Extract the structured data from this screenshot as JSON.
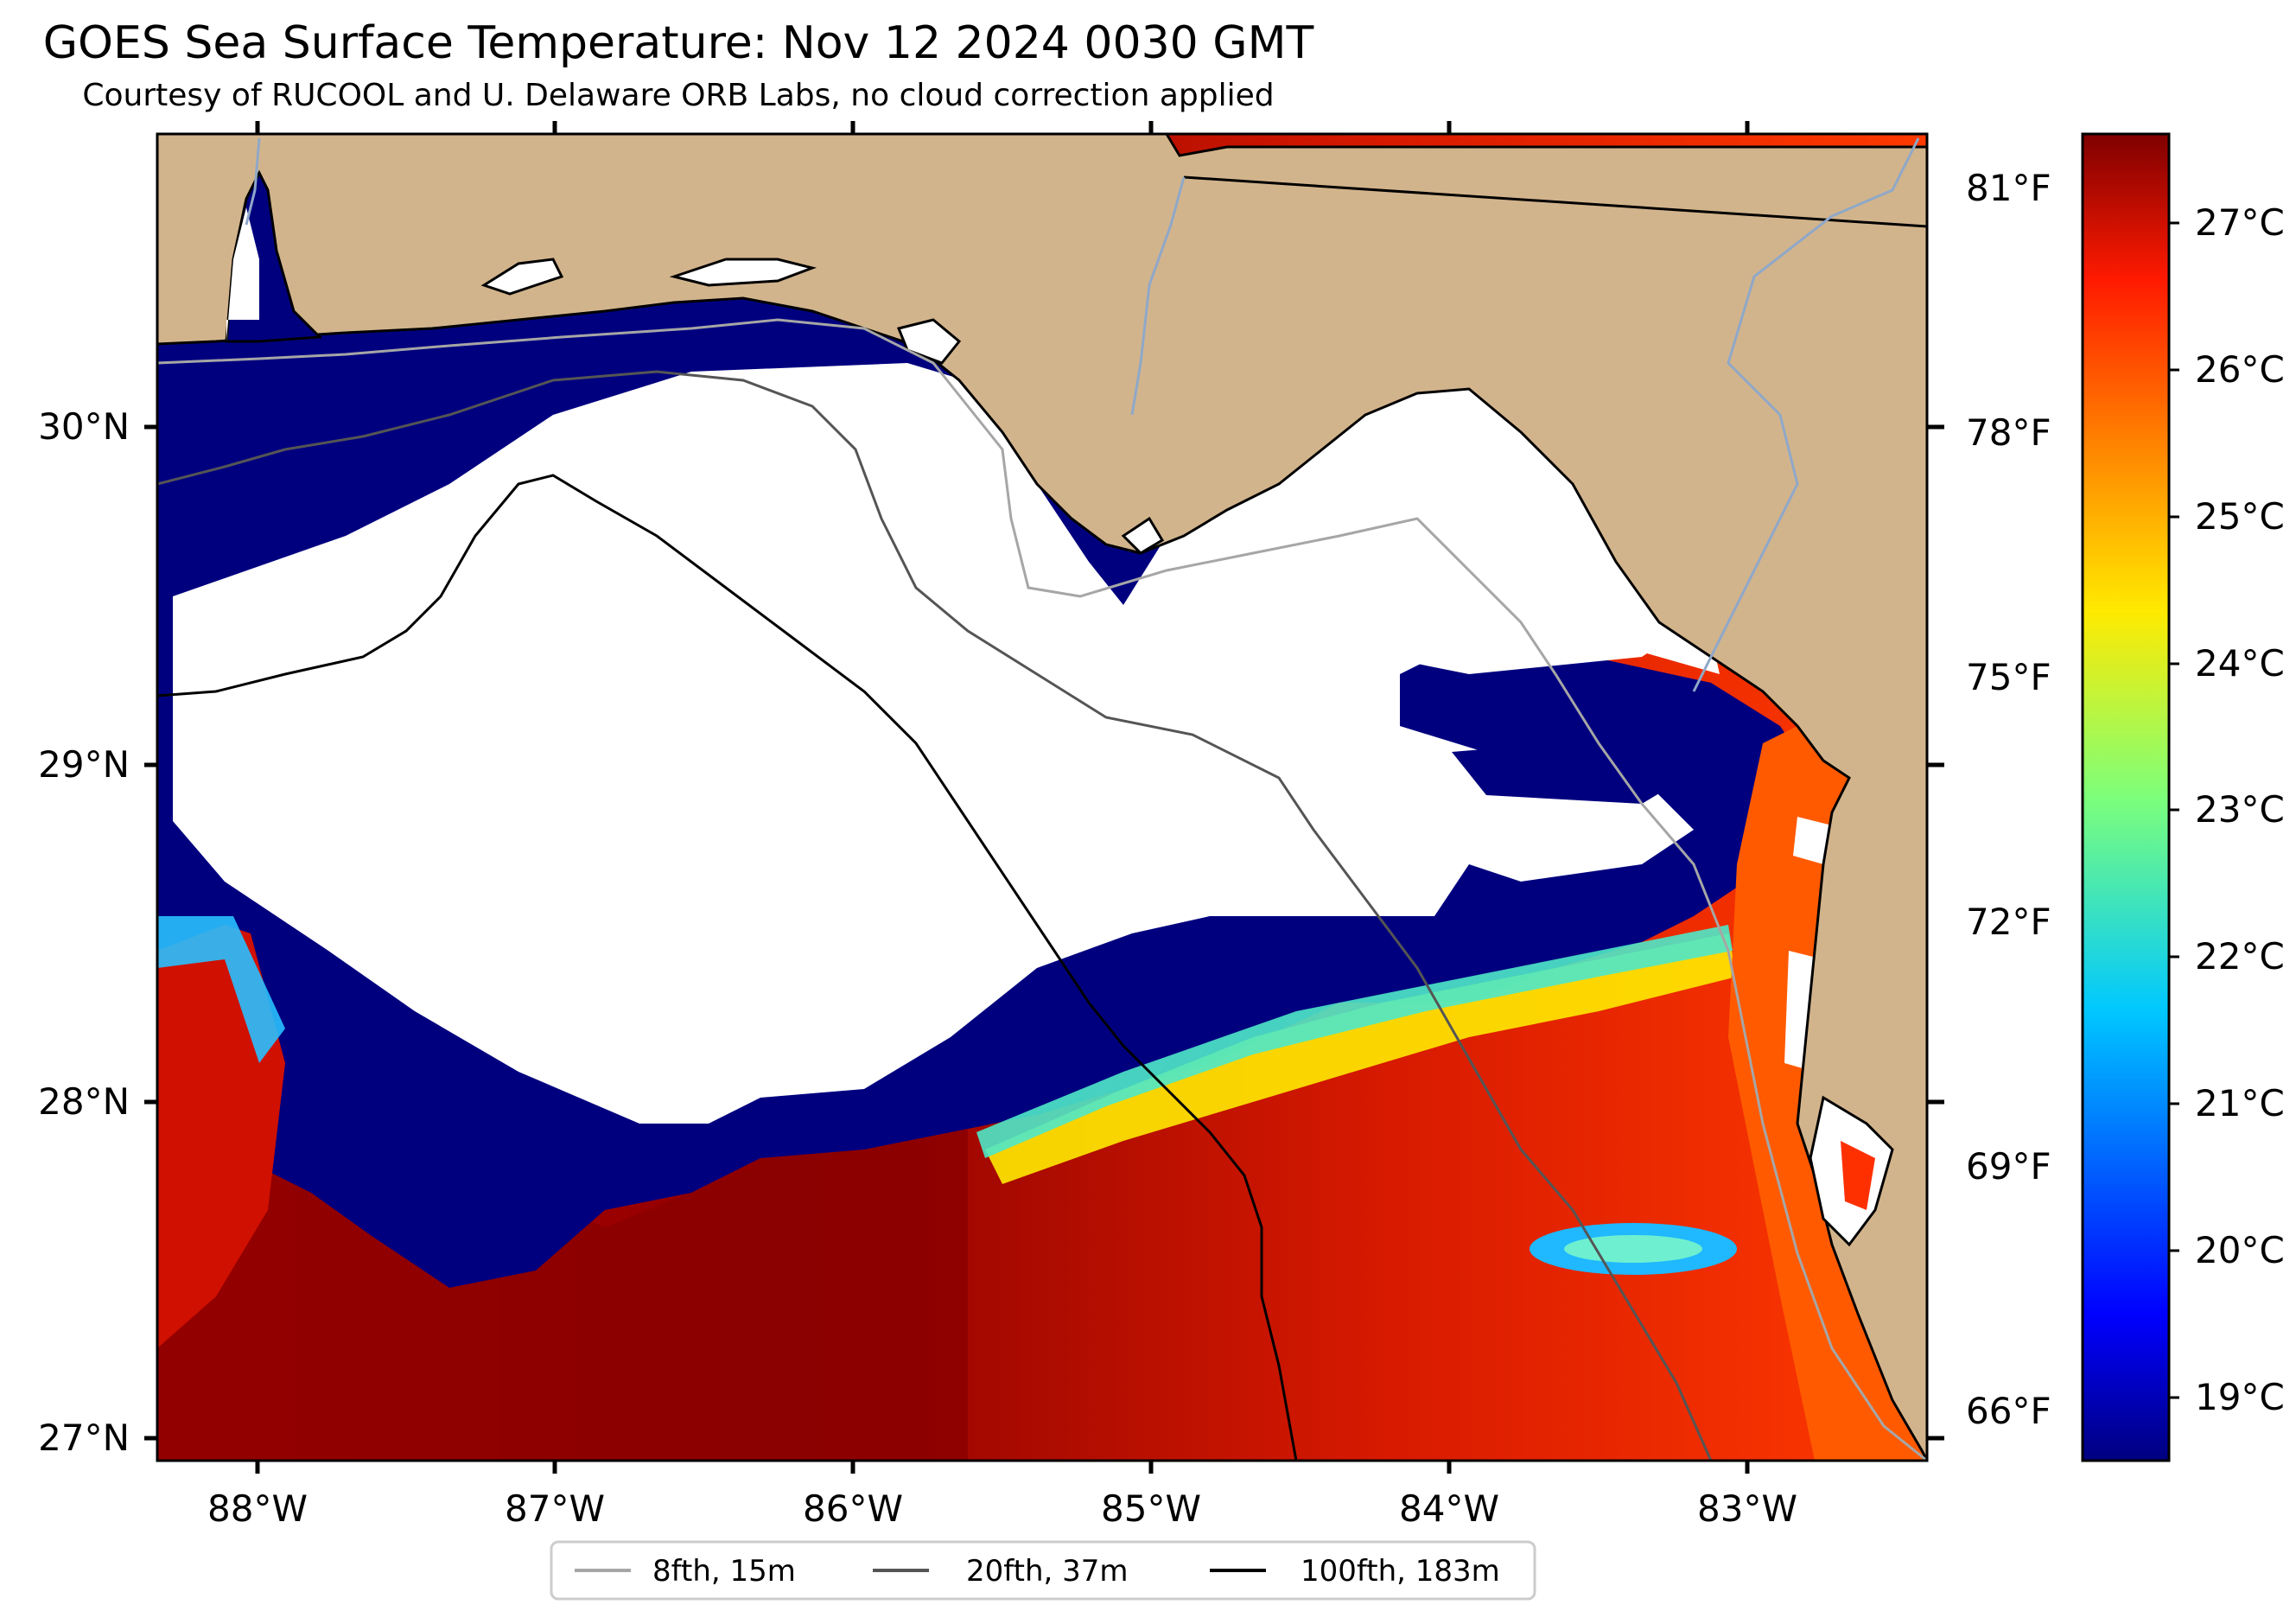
{
  "title": "GOES Sea Surface Temperature: Nov 12 2024 0030 GMT",
  "subtitle": "Courtesy of RUCOOL and U. Delaware ORB Labs, no cloud correction applied",
  "lon_ticks": [
    "88°W",
    "87°W",
    "86°W",
    "85°W",
    "84°W",
    "83°W"
  ],
  "lat_ticks": [
    "30°N",
    "29°N",
    "28°N",
    "27°N"
  ],
  "fahrenheit_ticks": [
    "81°F",
    "78°F",
    "75°F",
    "72°F",
    "69°F",
    "66°F"
  ],
  "celsius_ticks": [
    "27°C",
    "26°C",
    "25°C",
    "24°C",
    "23°C",
    "22°C",
    "21°C",
    "20°C",
    "19°C"
  ],
  "legend": [
    {
      "label": "8fth, 15m",
      "color": "#a6a6a6"
    },
    {
      "label": "20fth, 37m",
      "color": "#555555"
    },
    {
      "label": "100fth, 183m",
      "color": "#000000"
    }
  ],
  "colors": {
    "land": "#d2b48c",
    "cloud": "#ffffff",
    "cold": "#00007f",
    "warm": "#e82a00",
    "hot": "#8b0000",
    "river": "#8fa8c8"
  },
  "colorbar_range_c": [
    18.6,
    27.5
  ]
}
